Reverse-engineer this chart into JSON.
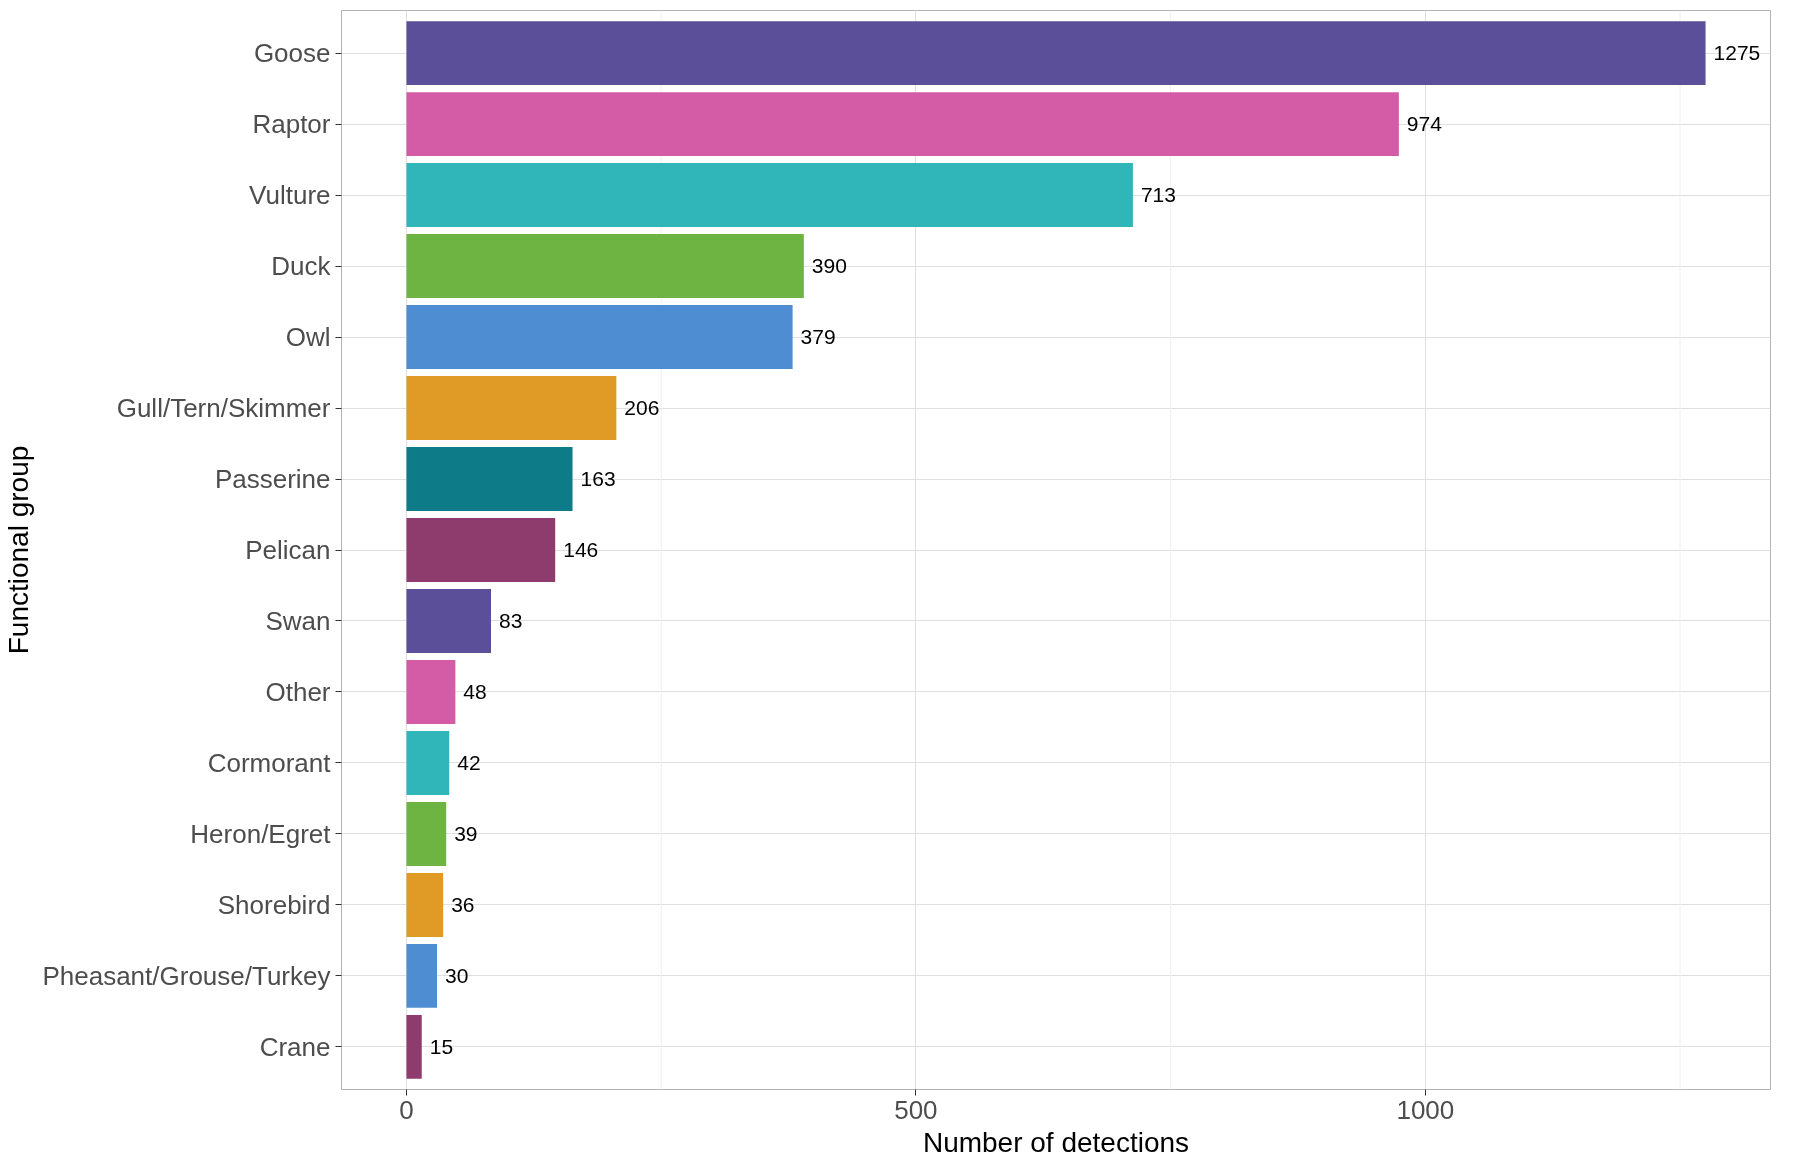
{
  "chart_data": {
    "type": "bar",
    "orientation": "horizontal",
    "xlabel": "Number of detections",
    "ylabel": "Functional group",
    "categories": [
      "Goose",
      "Raptor",
      "Vulture",
      "Duck",
      "Owl",
      "Gull/Tern/Skimmer",
      "Passerine",
      "Pelican",
      "Swan",
      "Other",
      "Cormorant",
      "Heron/Egret",
      "Shorebird",
      "Pheasant/Grouse/Turkey",
      "Crane"
    ],
    "values": [
      1275,
      974,
      713,
      390,
      379,
      206,
      163,
      146,
      83,
      48,
      42,
      39,
      36,
      30,
      15
    ],
    "colors": [
      "#5b4f99",
      "#d45ba6",
      "#30b5b8",
      "#6db443",
      "#4f8dd2",
      "#e09b26",
      "#0e7b88",
      "#8e3b6e",
      "#5b4f99",
      "#d45ba6",
      "#30b5b8",
      "#6db443",
      "#e09b26",
      "#4f8dd2",
      "#8e3b6e"
    ],
    "xlim": [
      -63.75,
      1338.75
    ],
    "xticks": [
      0,
      500,
      1000
    ],
    "grid": true,
    "data_labels": true
  }
}
